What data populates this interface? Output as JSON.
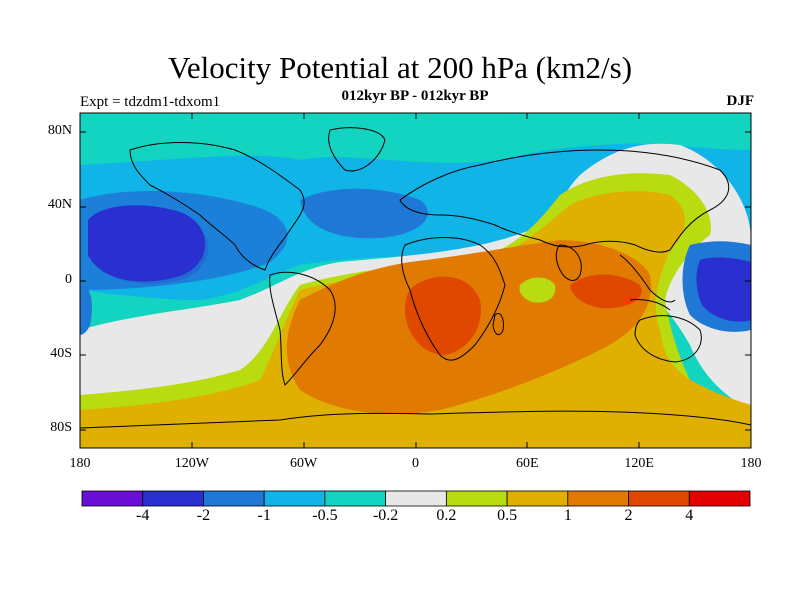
{
  "header": {
    "title": "Velocity Potential at 200 hPa (km2/s)",
    "subtitle": "012kyr BP - 012kyr BP",
    "left_label": "Expt = tdzdm1-tdxom1",
    "right_label": "DJF"
  },
  "axes": {
    "lat_labels": [
      "80N",
      "40N",
      "0",
      "40S",
      "80S"
    ],
    "lat_values": [
      80,
      40,
      0,
      -40,
      -80
    ],
    "lon_labels": [
      "180",
      "120W",
      "60W",
      "0",
      "60E",
      "120E",
      "180"
    ],
    "lon_values": [
      -180,
      -120,
      -60,
      0,
      60,
      120,
      180
    ],
    "lat_range": [
      -90,
      90
    ],
    "lon_range": [
      -180,
      180
    ]
  },
  "colorbar": {
    "labels": [
      "-4",
      "-2",
      "-1",
      "-0.5",
      "-0.2",
      "0.2",
      "0.5",
      "1",
      "2",
      "4"
    ],
    "colors": [
      "#6a0fd6",
      "#2a2fd0",
      "#1f77d6",
      "#10b4e6",
      "#12d4c0",
      "#e8e8e8",
      "#b8dc10",
      "#dfb000",
      "#e07a00",
      "#e04800",
      "#e20000"
    ]
  },
  "map_colors": {
    "frame": "#000000",
    "coast": "#000000"
  }
}
